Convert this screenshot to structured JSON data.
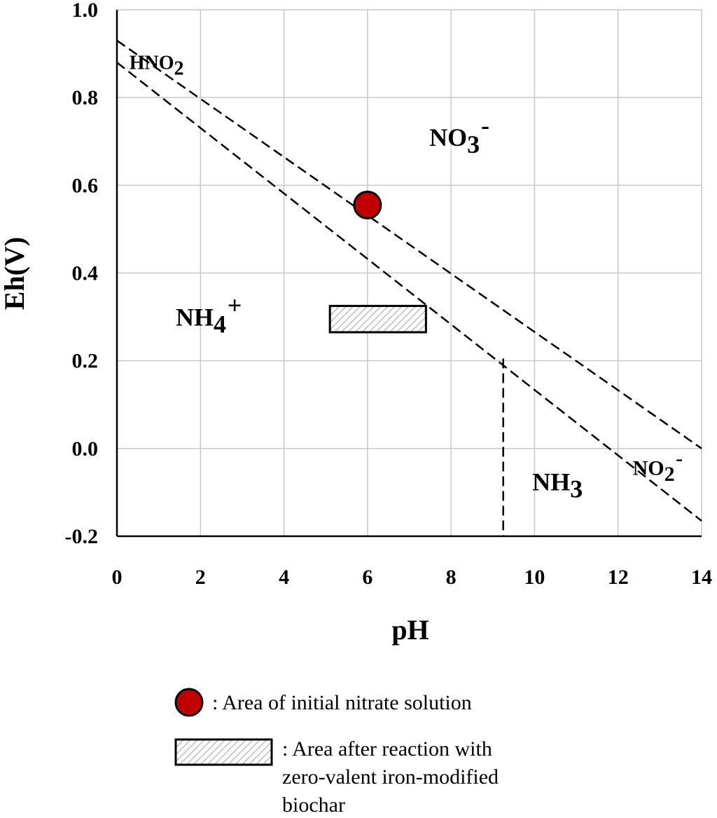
{
  "chart_data": {
    "type": "line",
    "xlabel": "pH",
    "ylabel": "Eh(V)",
    "xlim": [
      0,
      14
    ],
    "ylim": [
      -0.2,
      1.0
    ],
    "x_ticks": [
      0,
      2,
      4,
      6,
      8,
      10,
      12,
      14
    ],
    "y_ticks": [
      -0.2,
      0.0,
      0.2,
      0.4,
      0.6,
      0.8,
      1.0
    ],
    "y_tick_labels": [
      "-0.2",
      "0.0",
      "0.2",
      "0.4",
      "0.6",
      "0.8",
      "1.0"
    ],
    "grid": true,
    "series": [
      {
        "style": "dashed",
        "points": [
          [
            0,
            0.93
          ],
          [
            14,
            0.0
          ]
        ]
      },
      {
        "style": "dashed",
        "points": [
          [
            0,
            0.88
          ],
          [
            14,
            -0.165
          ]
        ]
      },
      {
        "style": "dashed",
        "points": [
          [
            9.25,
            0.205
          ],
          [
            9.25,
            -0.2
          ]
        ]
      }
    ],
    "region_labels": [
      {
        "base": "HNO",
        "sub": "2",
        "sup": "",
        "x": 0.95,
        "y": 0.865,
        "size": 28
      },
      {
        "base": "NO",
        "sub": "3",
        "sup": "-",
        "x": 8.2,
        "y": 0.69,
        "size": 36
      },
      {
        "base": "NH",
        "sub": "4",
        "sup": "+",
        "x": 2.2,
        "y": 0.28,
        "size": 36
      },
      {
        "base": "NH",
        "sub": "3",
        "sup": "",
        "x": 10.55,
        "y": -0.095,
        "size": 36
      },
      {
        "base": "NO",
        "sub": "2",
        "sup": "-",
        "x": 12.95,
        "y": -0.06,
        "size": 30
      }
    ],
    "markers": [
      {
        "shape": "circle",
        "x": 6.0,
        "y": 0.555,
        "color": "#c00000"
      },
      {
        "shape": "hatched-rectangle",
        "x0": 5.1,
        "x1": 7.4,
        "y0": 0.265,
        "y1": 0.325,
        "color": "#cccccc"
      }
    ],
    "legend": {
      "position": "bottom",
      "entries": [
        {
          "marker": "circle",
          "lines": [
            ": Area of initial nitrate solution"
          ]
        },
        {
          "marker": "hatched-rectangle",
          "lines": [
            ": Area after reaction with",
            "zero-valent iron-modified",
            "biochar"
          ]
        }
      ]
    }
  }
}
